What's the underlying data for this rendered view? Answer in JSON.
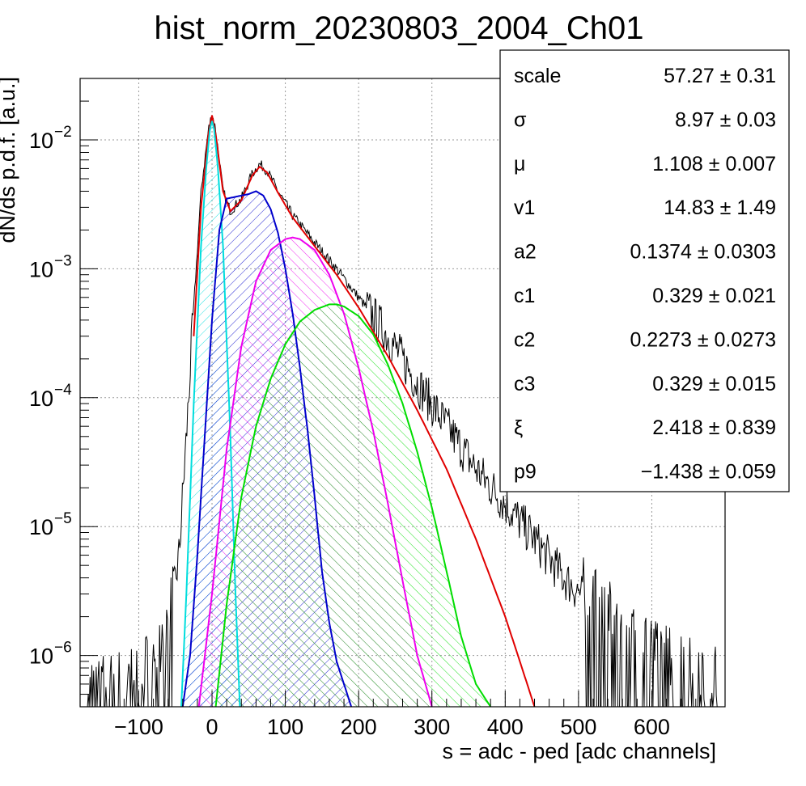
{
  "chart_data": {
    "type": "line",
    "title": "hist_norm_20230803_2004_Ch01",
    "xlabel": "s = adc - ped [adc channels]",
    "ylabel": "dN/ds p.d.f. [a.u.]",
    "xlim": [
      -180,
      700
    ],
    "ylim": [
      4e-07,
      0.03
    ],
    "yscale": "log",
    "grid": true,
    "x_ticks": [
      -100,
      0,
      100,
      200,
      300,
      400,
      500,
      600
    ],
    "x_tick_labels": [
      "−100",
      "0",
      "100",
      "200",
      "300",
      "400",
      "500",
      "600"
    ],
    "y_ticks": [
      {
        "base": "10",
        "exp": "−6",
        "value": 1e-06
      },
      {
        "base": "10",
        "exp": "−5",
        "value": 1e-05
      },
      {
        "base": "10",
        "exp": "−4",
        "value": 0.0001
      },
      {
        "base": "10",
        "exp": "−3",
        "value": 0.001
      },
      {
        "base": "10",
        "exp": "−2",
        "value": 0.01
      }
    ],
    "series": [
      {
        "key": "data",
        "color": "#000000",
        "x": [
          -170,
          -100,
          -60,
          -45,
          -35,
          -25,
          -15,
          -5,
          0,
          5,
          15,
          25,
          40,
          55,
          65,
          75,
          90,
          110,
          140,
          170,
          200,
          240,
          280,
          320,
          360,
          400,
          440,
          480,
          520,
          560,
          600,
          640,
          690
        ],
        "y": [
          5e-07,
          6e-07,
          1.5e-06,
          6e-06,
          5e-05,
          0.0005,
          0.004,
          0.012,
          0.016,
          0.012,
          0.004,
          0.0028,
          0.0035,
          0.0055,
          0.0065,
          0.0058,
          0.004,
          0.0026,
          0.0016,
          0.001,
          0.0006,
          0.0003,
          0.00013,
          6e-05,
          2.8e-05,
          1.5e-05,
          8e-06,
          4e-06,
          2.5e-06,
          1.5e-06,
          1e-06,
          8e-07,
          6e-07
        ]
      },
      {
        "key": "total-fit",
        "color": "#e00000",
        "x": [
          -25,
          -15,
          -5,
          0,
          5,
          15,
          25,
          40,
          55,
          65,
          75,
          90,
          110,
          140,
          170,
          200,
          240,
          280,
          320,
          360,
          400,
          420,
          440
        ],
        "y": [
          0.0003,
          0.003,
          0.011,
          0.0155,
          0.011,
          0.004,
          0.0028,
          0.0034,
          0.0053,
          0.0062,
          0.0056,
          0.0039,
          0.0025,
          0.0015,
          0.0009,
          0.0005,
          0.00021,
          8e-05,
          2.8e-05,
          8e-06,
          2e-06,
          9e-07,
          4e-07
        ]
      },
      {
        "key": "pedestal",
        "color": "#00dddd",
        "fill_angle": 45,
        "x": [
          -42,
          -35,
          -25,
          -15,
          -8,
          -3,
          0,
          3,
          8,
          15,
          25,
          32,
          38
        ],
        "y": [
          4e-07,
          3e-06,
          9e-05,
          0.0015,
          0.006,
          0.012,
          0.014,
          0.012,
          0.006,
          0.0015,
          5e-05,
          3e-06,
          4e-07
        ]
      },
      {
        "key": "component-1",
        "color": "#0000cc",
        "fill_angle": 45,
        "x": [
          -40,
          -30,
          -20,
          -10,
          0,
          10,
          20,
          30,
          40,
          50,
          60,
          70,
          80,
          90,
          100,
          110,
          120,
          130,
          140,
          150,
          160,
          170,
          180,
          190
        ],
        "y": [
          4e-07,
          1e-06,
          6e-06,
          5e-05,
          0.0004,
          0.002,
          0.0035,
          0.0036,
          0.0037,
          0.0038,
          0.004,
          0.0037,
          0.0029,
          0.0019,
          0.001,
          0.00045,
          0.00017,
          5.8e-05,
          1.7e-05,
          4.5e-06,
          1.8e-06,
          9e-07,
          6e-07,
          4e-07
        ]
      },
      {
        "key": "component-2",
        "color": "#ee00ee",
        "fill_angle": -45,
        "x": [
          -18,
          0,
          20,
          40,
          60,
          80,
          100,
          110,
          120,
          140,
          160,
          180,
          200,
          220,
          240,
          260,
          280,
          300
        ],
        "y": [
          4e-07,
          3e-06,
          4e-05,
          0.00025,
          0.0008,
          0.0014,
          0.0017,
          0.00175,
          0.0017,
          0.0014,
          0.0009,
          0.00045,
          0.00017,
          5.5e-05,
          1.5e-05,
          3.8e-06,
          1e-06,
          4e-07
        ]
      },
      {
        "key": "component-3",
        "color": "#00dd00",
        "fill_angle": -45,
        "x": [
          5,
          20,
          40,
          60,
          80,
          100,
          120,
          140,
          160,
          170,
          180,
          200,
          220,
          240,
          260,
          280,
          300,
          320,
          340,
          360,
          380
        ],
        "y": [
          4e-07,
          2.5e-06,
          1.7e-05,
          6e-05,
          0.00014,
          0.00026,
          0.00039,
          0.00048,
          0.00053,
          0.00053,
          0.00051,
          0.00043,
          0.00031,
          0.00018,
          9e-05,
          3.8e-05,
          1.4e-05,
          4.5e-06,
          1.4e-06,
          6e-07,
          4e-07
        ]
      }
    ],
    "stats": [
      {
        "name": "scale",
        "value": "57.27 ± 0.31"
      },
      {
        "name": "σ",
        "value": "8.97 ± 0.03"
      },
      {
        "name": "μ",
        "value": "1.108 ± 0.007"
      },
      {
        "name": "v1",
        "value": "14.83 ± 1.49"
      },
      {
        "name": "a2",
        "value": "0.1374 ± 0.0303"
      },
      {
        "name": "c1",
        "value": "0.329 ± 0.021"
      },
      {
        "name": "c2",
        "value": "0.2273 ± 0.0273"
      },
      {
        "name": "c3",
        "value": "0.329 ± 0.015"
      },
      {
        "name": "ξ",
        "value": "2.418 ± 0.839"
      },
      {
        "name": "p9",
        "value": "−1.438 ± 0.059"
      }
    ]
  }
}
